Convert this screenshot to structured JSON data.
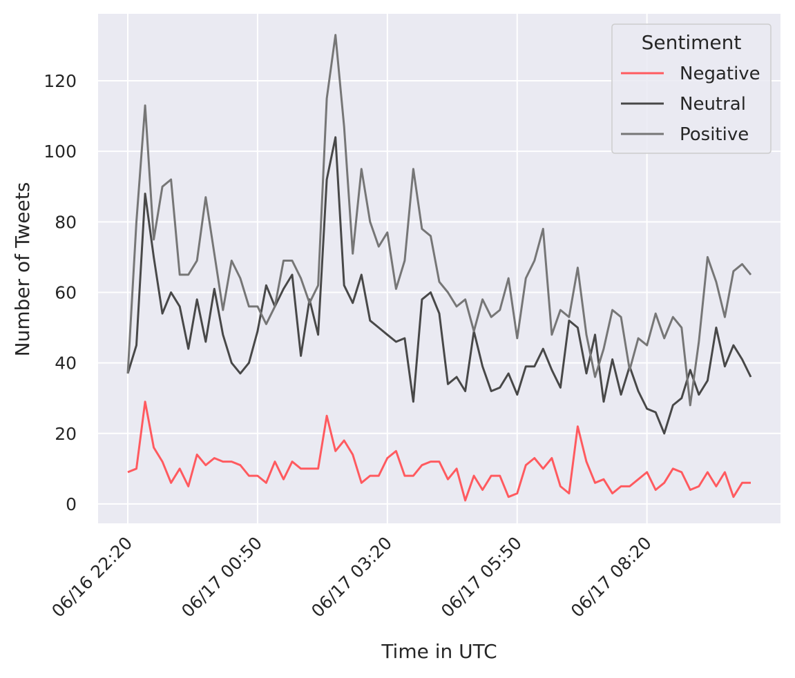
{
  "chart_data": {
    "type": "line",
    "xlabel": "Time in UTC",
    "ylabel": "Number of Tweets",
    "x_start": "06/16 22:20",
    "x_interval_minutes": 10,
    "xticks": [
      "06/16 22:20",
      "06/17 00:50",
      "06/17 03:20",
      "06/17 05:50",
      "06/17 08:20"
    ],
    "yticks": [
      0,
      20,
      40,
      60,
      80,
      100,
      120
    ],
    "ylim": [
      -5.5,
      139
    ],
    "grid": true,
    "background": "#EAEAF2",
    "legend": {
      "title": "Sentiment",
      "position": "top-right"
    },
    "series": [
      {
        "name": "Negative",
        "color": "#FF5A5F",
        "values": [
          9,
          10,
          29,
          16,
          12,
          6,
          10,
          5,
          14,
          11,
          13,
          12,
          12,
          11,
          8,
          8,
          6,
          12,
          7,
          12,
          10,
          10,
          10,
          25,
          15,
          18,
          14,
          6,
          8,
          8,
          13,
          15,
          8,
          8,
          11,
          12,
          12,
          7,
          10,
          1,
          8,
          4,
          8,
          8,
          2,
          3,
          11,
          13,
          10,
          13,
          5,
          3,
          22,
          12,
          6,
          7,
          3,
          5,
          5,
          7,
          9,
          4,
          6,
          10,
          9,
          4,
          5,
          9,
          5,
          9,
          2,
          6,
          6
        ]
      },
      {
        "name": "Neutral",
        "color": "#484848",
        "values": [
          37,
          45,
          88,
          70,
          54,
          60,
          56,
          44,
          58,
          46,
          61,
          48,
          40,
          37,
          40,
          49,
          62,
          56,
          61,
          65,
          42,
          58,
          48,
          92,
          104,
          62,
          57,
          65,
          52,
          50,
          48,
          46,
          47,
          29,
          58,
          60,
          54,
          34,
          36,
          32,
          49,
          39,
          32,
          33,
          37,
          31,
          39,
          39,
          44,
          38,
          33,
          52,
          50,
          37,
          48,
          29,
          41,
          31,
          39,
          32,
          27,
          26,
          20,
          28,
          30,
          38,
          31,
          35,
          50,
          39,
          45,
          41,
          36
        ]
      },
      {
        "name": "Positive",
        "color": "#767676",
        "values": [
          37,
          80,
          113,
          75,
          90,
          92,
          65,
          65,
          69,
          87,
          71,
          55,
          69,
          64,
          56,
          56,
          51,
          56,
          69,
          69,
          64,
          57,
          62,
          115,
          133,
          107,
          71,
          95,
          80,
          73,
          77,
          61,
          69,
          95,
          78,
          76,
          63,
          60,
          56,
          58,
          49,
          58,
          53,
          55,
          64,
          47,
          64,
          69,
          78,
          48,
          55,
          53,
          67,
          48,
          36,
          44,
          55,
          53,
          38,
          47,
          45,
          54,
          47,
          53,
          50,
          28,
          46,
          70,
          63,
          53,
          66,
          68,
          65
        ]
      }
    ]
  }
}
